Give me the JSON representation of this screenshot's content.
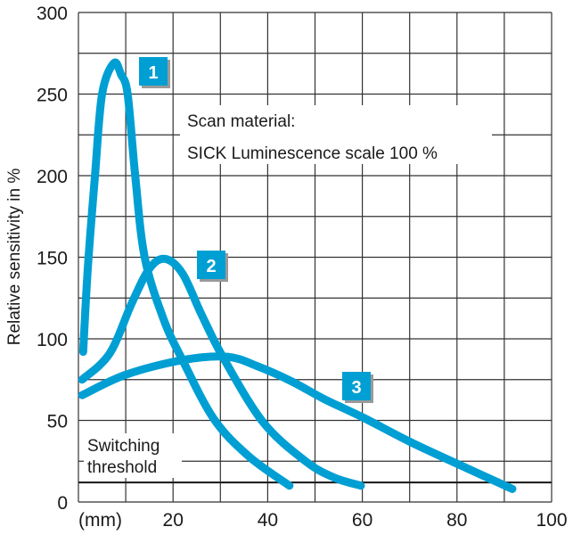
{
  "chart_data": {
    "type": "line",
    "title": "",
    "xlabel": "(mm)",
    "ylabel": "Relative sensitivity in %",
    "xlim": [
      0,
      100
    ],
    "ylim": [
      0,
      300
    ],
    "x_ticks": [
      "20",
      "40",
      "60",
      "80",
      "100"
    ],
    "y_ticks": [
      "0",
      "50",
      "100",
      "150",
      "200",
      "250",
      "300"
    ],
    "grid": true,
    "grid_x_step": 10,
    "grid_y_step": 25,
    "curve_color": "#009fd3",
    "annotation": [
      "Scan material:",
      "SICK Luminescence scale 100 %"
    ],
    "threshold": {
      "label": [
        "Switching",
        "threshold"
      ],
      "value": 12
    },
    "series": [
      {
        "name": "1",
        "points": [
          [
            1,
            92
          ],
          [
            2,
            144
          ],
          [
            3.5,
            200
          ],
          [
            5,
            250
          ],
          [
            7.5,
            269
          ],
          [
            9,
            262
          ],
          [
            10.4,
            250
          ],
          [
            12,
            200
          ],
          [
            14,
            150
          ],
          [
            18,
            112
          ],
          [
            22,
            87
          ],
          [
            28.6,
            51
          ],
          [
            36,
            28
          ],
          [
            44.6,
            10
          ]
        ]
      },
      {
        "name": "2",
        "points": [
          [
            0.8,
            75
          ],
          [
            6.6,
            91
          ],
          [
            11.3,
            122
          ],
          [
            15,
            143
          ],
          [
            18.3,
            149
          ],
          [
            22,
            140
          ],
          [
            26,
            115
          ],
          [
            30.5,
            89
          ],
          [
            39,
            49
          ],
          [
            48,
            25
          ],
          [
            54,
            15
          ],
          [
            59.7,
            10
          ]
        ]
      },
      {
        "name": "3",
        "points": [
          [
            0.8,
            65.5
          ],
          [
            10,
            78
          ],
          [
            22,
            87
          ],
          [
            31.5,
            89
          ],
          [
            38,
            83
          ],
          [
            45,
            74
          ],
          [
            52,
            63
          ],
          [
            60,
            52
          ],
          [
            70,
            37
          ],
          [
            80,
            23.5
          ],
          [
            91.7,
            8
          ]
        ]
      }
    ]
  }
}
